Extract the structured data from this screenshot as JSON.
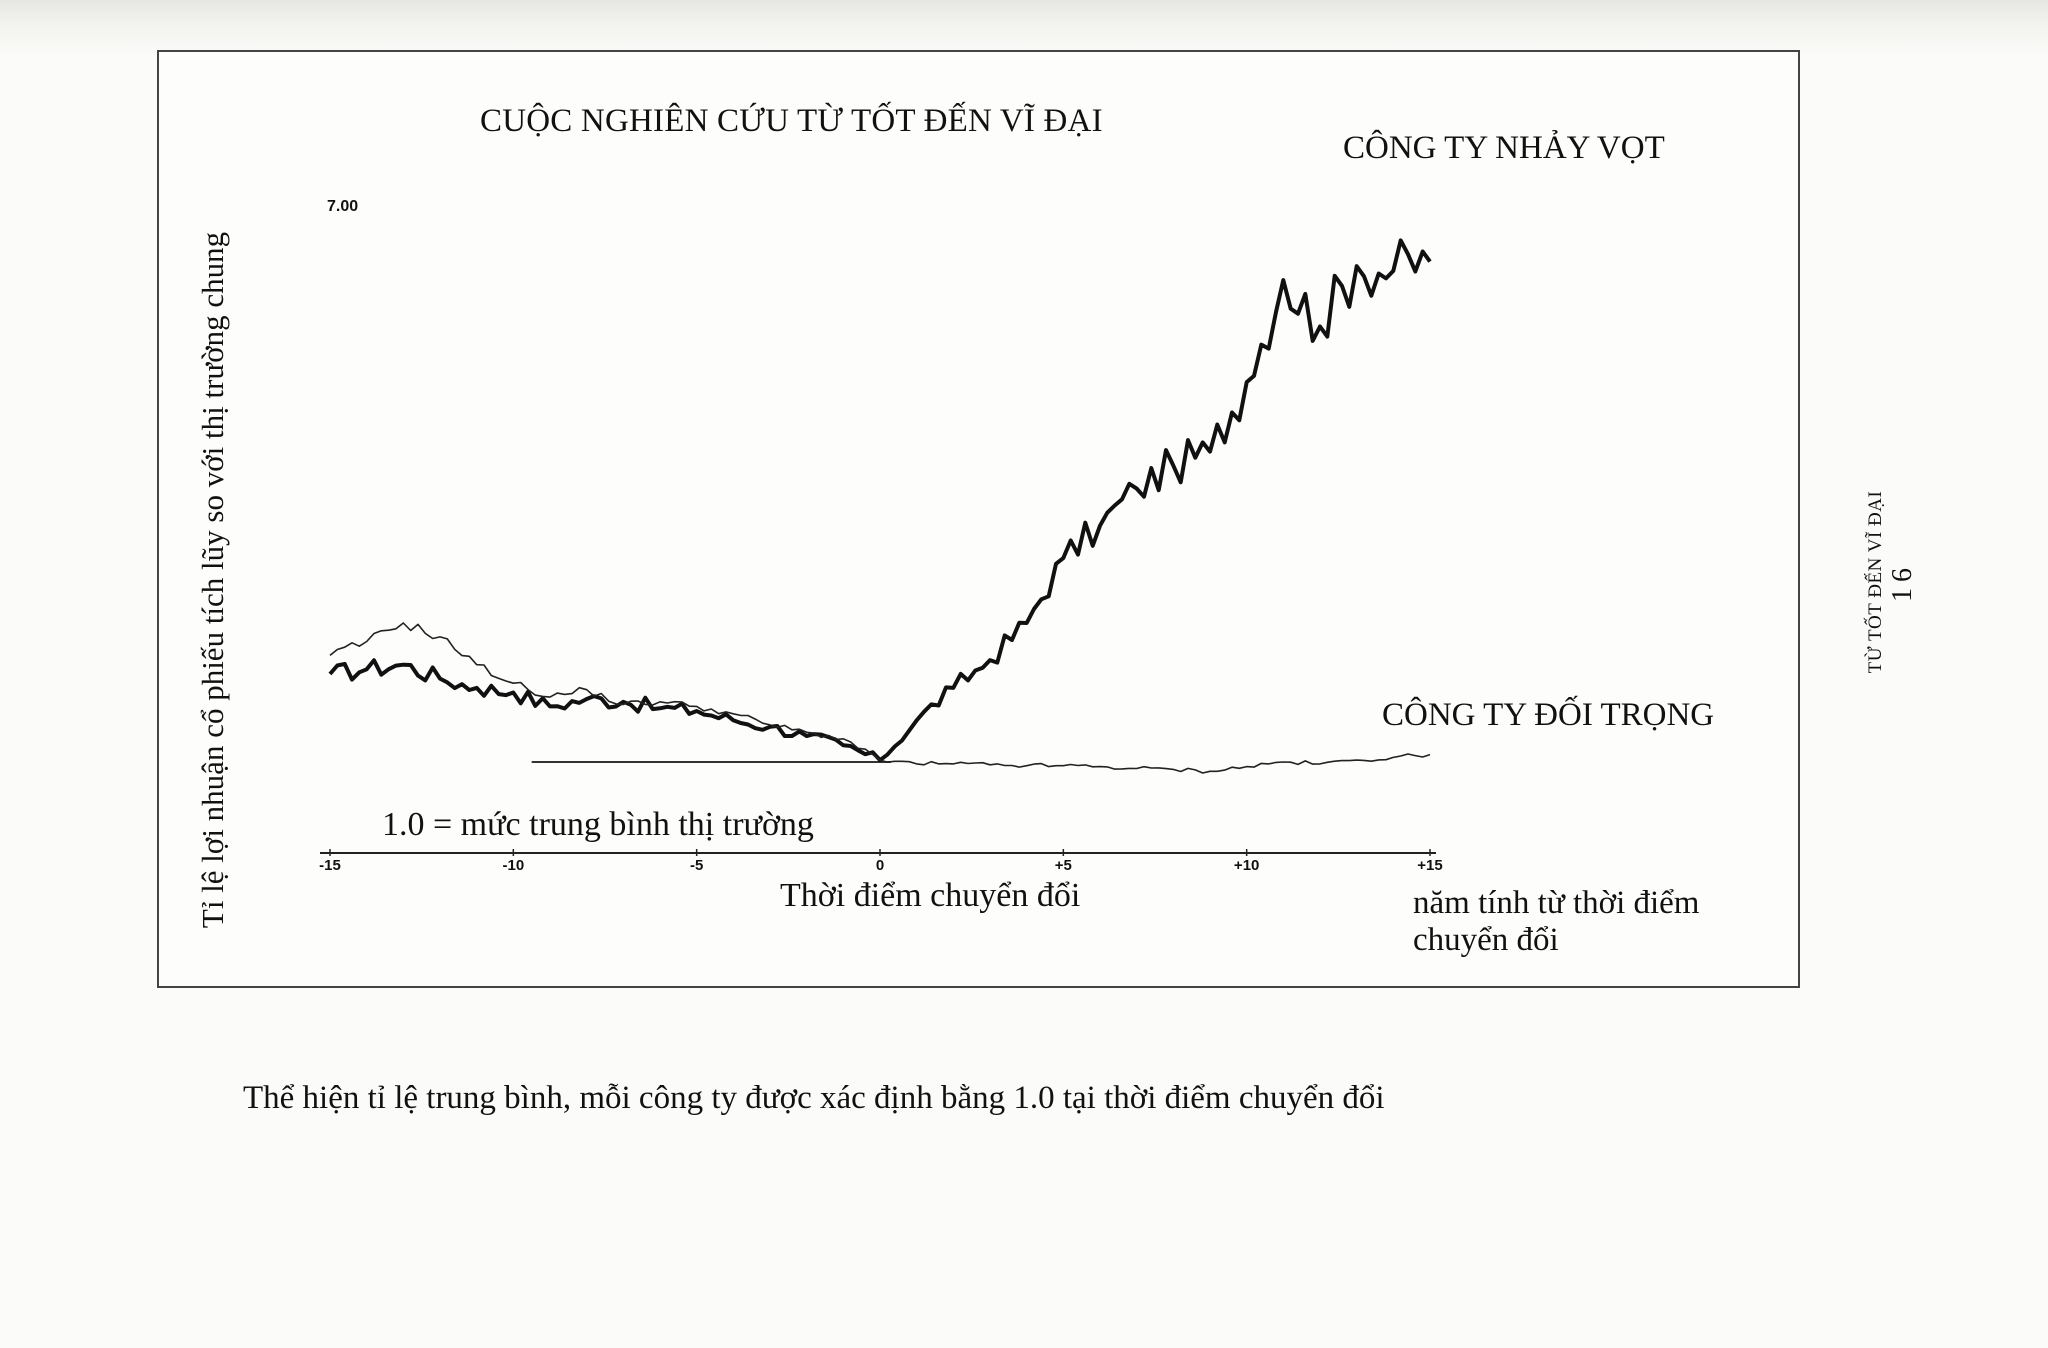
{
  "chart_data": {
    "type": "line",
    "title": "CUỘC NGHIÊN CỨU TỪ TỐT ĐẾN VĨ ĐẠI",
    "ylabel": "Tỉ lệ lợi nhuận cổ phiếu tích lũy so với thị trường chung",
    "xlabel": "Thời điểm chuyển đổi",
    "x_unit_label": "năm tính từ thời điểm chuyển đổi",
    "x_ticks": [
      "-15",
      "-10",
      "-5",
      "0",
      "+5",
      "+10",
      "+15"
    ],
    "x_tick_values": [
      -15,
      -10,
      -5,
      0,
      5,
      10,
      15
    ],
    "y_tick_label": "7.00",
    "xlim": [
      -15,
      15
    ],
    "ylim": [
      0.5,
      7.0
    ],
    "baseline": {
      "value": 1.0,
      "label": "1.0 = mức trung bình thị trường"
    },
    "series": [
      {
        "name": "CÔNG TY NHẢY VỌT",
        "color": "#111111",
        "x": [
          -15,
          -14,
          -13,
          -12,
          -11,
          -10,
          -9,
          -8,
          -7,
          -6,
          -5,
          -4,
          -3,
          -2,
          -1,
          0,
          1,
          2,
          3,
          4,
          5,
          6,
          7,
          8,
          9,
          10,
          11,
          12,
          13,
          14,
          15
        ],
        "y": [
          1.95,
          2.0,
          2.05,
          1.9,
          1.8,
          1.75,
          1.6,
          1.68,
          1.65,
          1.58,
          1.55,
          1.45,
          1.38,
          1.28,
          1.18,
          1.02,
          1.45,
          1.8,
          2.1,
          2.5,
          3.2,
          3.55,
          3.95,
          4.2,
          4.35,
          5.1,
          6.2,
          5.7,
          6.35,
          6.3,
          6.4
        ]
      },
      {
        "name": "CÔNG TY ĐỐI TRỌNG",
        "color": "#222222",
        "x": [
          -15,
          -14,
          -13,
          -12,
          -11,
          -10,
          -9,
          -8,
          -7,
          -6,
          -5,
          -4,
          -3,
          -2,
          -1,
          0,
          1,
          2,
          3,
          4,
          5,
          6,
          7,
          8,
          9,
          10,
          11,
          12,
          13,
          14,
          15
        ],
        "y": [
          2.15,
          2.3,
          2.5,
          2.35,
          2.05,
          1.85,
          1.7,
          1.78,
          1.62,
          1.65,
          1.6,
          1.52,
          1.4,
          1.32,
          1.25,
          1.02,
          0.98,
          0.98,
          0.97,
          0.96,
          0.96,
          0.95,
          0.93,
          0.92,
          0.9,
          0.95,
          1.0,
          0.98,
          1.02,
          1.05,
          1.08
        ]
      }
    ],
    "grid": false,
    "legend": "direct labels at line ends (top-right and right)"
  },
  "caption": "Thể hiện tỉ lệ trung bình, mỗi công ty được xác định bằng 1.0 tại thời điểm chuyển đổi",
  "side_header": {
    "book_title": "TỪ TỐT ĐẾN VĨ ĐẠI",
    "page_number": "16"
  },
  "style": {
    "ink": "#111111",
    "paper": "#fbfbf9",
    "frame": "#444444"
  }
}
